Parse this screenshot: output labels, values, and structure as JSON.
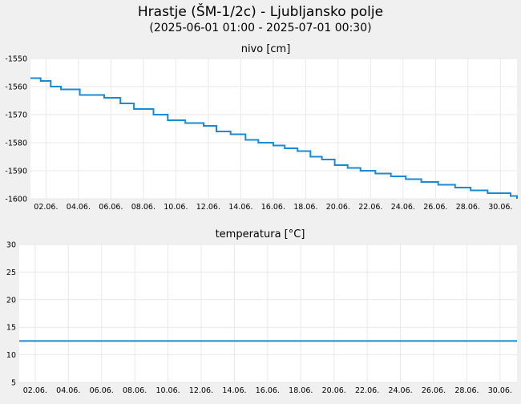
{
  "title": "Hrastje (ŠM-1/2c) - Ljubljansko polje",
  "subtitle": "(2025-06-01 01:00 - 2025-07-01 00:30)",
  "colors": {
    "background": "#f0f0f0",
    "plot_background": "#ffffff",
    "series": "#1a8ad4",
    "grid": "#e9e9e9"
  },
  "chart_data": [
    {
      "type": "line",
      "title": "nivo [cm]",
      "x_range": [
        "2025-06-01T01:00",
        "2025-07-01T00:30"
      ],
      "x_tick_labels": [
        "02.06.",
        "04.06.",
        "06.06.",
        "08.06.",
        "10.06.",
        "12.06.",
        "14.06.",
        "16.06.",
        "18.06.",
        "20.06.",
        "22.06.",
        "24.06.",
        "26.06.",
        "28.06.",
        "30.06."
      ],
      "ylim": [
        -1600,
        -1550
      ],
      "y_ticks": [
        -1550,
        -1560,
        -1570,
        -1580,
        -1590,
        -1600
      ],
      "grid": true,
      "legend": "none",
      "x": [
        "2025-06-01T01:00",
        "2025-06-01T16:00",
        "2025-06-02T07:00",
        "2025-06-02T22:00",
        "2025-06-04T02:00",
        "2025-06-05T14:00",
        "2025-06-06T14:00",
        "2025-06-07T10:00",
        "2025-06-08T15:00",
        "2025-06-09T12:00",
        "2025-06-10T14:00",
        "2025-06-11T17:00",
        "2025-06-12T12:00",
        "2025-06-13T09:00",
        "2025-06-14T07:00",
        "2025-06-15T02:00",
        "2025-06-16T00:00",
        "2025-06-16T17:00",
        "2025-06-17T12:00",
        "2025-06-18T07:00",
        "2025-06-19T00:00",
        "2025-06-19T19:00",
        "2025-06-20T14:00",
        "2025-06-21T09:00",
        "2025-06-22T07:00",
        "2025-06-23T06:00",
        "2025-06-24T04:00",
        "2025-06-25T03:00",
        "2025-06-26T04:00",
        "2025-06-27T05:00",
        "2025-06-28T04:00",
        "2025-06-29T05:00",
        "2025-06-30T06:00",
        "2025-06-30T15:00",
        "2025-07-01T00:30"
      ],
      "y": [
        -1557,
        -1558,
        -1560,
        -1561,
        -1563,
        -1564,
        -1566,
        -1568,
        -1570,
        -1572,
        -1573,
        -1574,
        -1576,
        -1577,
        -1579,
        -1580,
        -1581,
        -1582,
        -1583,
        -1585,
        -1586,
        -1588,
        -1589,
        -1590,
        -1591,
        -1592,
        -1593,
        -1594,
        -1595,
        -1596,
        -1597,
        -1598,
        -1598,
        -1599,
        -1600
      ]
    },
    {
      "type": "line",
      "title": "temperatura [°C]",
      "x_range": [
        "2025-06-01T01:00",
        "2025-07-01T00:30"
      ],
      "x_tick_labels": [
        "02.06.",
        "04.06.",
        "06.06.",
        "08.06.",
        "10.06.",
        "12.06.",
        "14.06.",
        "16.06.",
        "18.06.",
        "20.06.",
        "22.06.",
        "24.06.",
        "26.06.",
        "28.06.",
        "30.06."
      ],
      "ylim": [
        5,
        30
      ],
      "y_ticks": [
        30,
        25,
        20,
        15,
        10,
        5
      ],
      "grid": true,
      "legend": "none",
      "x": [
        "2025-06-01T01:00",
        "2025-07-01T00:30"
      ],
      "y": [
        12.5,
        12.5
      ]
    }
  ]
}
